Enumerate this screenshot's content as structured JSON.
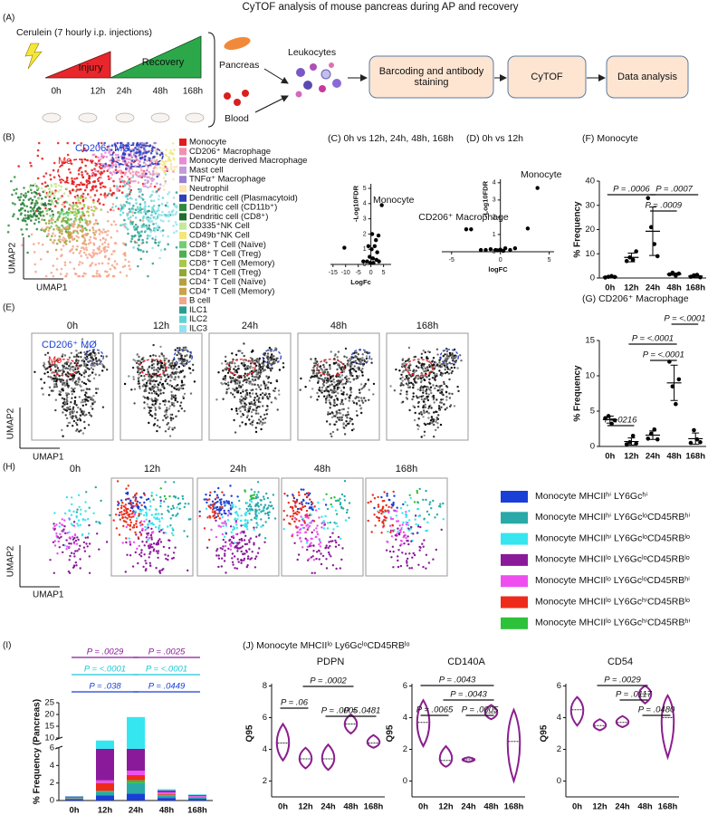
{
  "title": "CyTOF analysis of mouse pancreas during AP and recovery",
  "panel_a": {
    "label": "(A)",
    "treatment": "Cerulein (7 hourly i.p. injections)",
    "phases": [
      "Injury",
      "Recovery"
    ],
    "timepoints": [
      "0h",
      "12h",
      "24h",
      "48h",
      "168h"
    ],
    "tissues": [
      "Pancreas",
      "Blood"
    ],
    "cells": "Leukocytes",
    "steps": [
      "Barcoding and antibody staining",
      "CyTOF",
      "Data analysis"
    ]
  },
  "panel_b": {
    "label": "(B)",
    "gate_labels": [
      "CD206⁺ MØ",
      "Mo"
    ],
    "x_label": "UMAP1",
    "y_label": "UMAP2",
    "legend": [
      {
        "name": "Monocyte",
        "color": "#e41a1c"
      },
      {
        "name": "CD206⁺ Macrophage",
        "color": "#f48fb1"
      },
      {
        "name": "Monocyte derived Macrophage",
        "color": "#e98bd6"
      },
      {
        "name": "Mast cell",
        "color": "#c49bd8"
      },
      {
        "name": "TNFα⁺ Macrophage",
        "color": "#9b7fd0"
      },
      {
        "name": "Neutrophil",
        "color": "#fde4b0"
      },
      {
        "name": "Dendritic cell (Plasmacytoid)",
        "color": "#2b3fbf"
      },
      {
        "name": "Dendritic cell (CD11b⁺)",
        "color": "#2e8b3e"
      },
      {
        "name": "Dendritic cell (CD8⁺)",
        "color": "#1f6e2e"
      },
      {
        "name": "CD335⁺NK Cell",
        "color": "#c6e89a"
      },
      {
        "name": "CD49b⁺NK Cell",
        "color": "#f3e77a"
      },
      {
        "name": "CD8⁺ T Cell (Naïve)",
        "color": "#6fcf6f"
      },
      {
        "name": "CD8⁺ T Cell (Treg)",
        "color": "#4caf50"
      },
      {
        "name": "CD8⁺ T Cell (Memory)",
        "color": "#a8c84a"
      },
      {
        "name": "CD4⁺ T Cell (Treg)",
        "color": "#8fa832"
      },
      {
        "name": "CD4⁺ T Cell (Naïve)",
        "color": "#b5a040"
      },
      {
        "name": "CD4⁺ T Cell (Memory)",
        "color": "#c9a34a"
      },
      {
        "name": "B cell",
        "color": "#f4a58a"
      },
      {
        "name": "ILC1",
        "color": "#2a9d8f"
      },
      {
        "name": "ILC2",
        "color": "#5fd3d3"
      },
      {
        "name": "ILC3",
        "color": "#8fe3f0"
      }
    ]
  },
  "panel_e": {
    "label": "(E)",
    "timepoints": [
      "0h",
      "12h",
      "24h",
      "48h",
      "168h"
    ],
    "gate_labels": [
      "CD206⁺ MØ",
      "Mo"
    ],
    "x_label": "UMAP1",
    "y_label": "UMAP2"
  },
  "panel_h": {
    "label": "(H)",
    "timepoints": [
      "0h",
      "12h",
      "24h",
      "48h",
      "168h"
    ],
    "x_label": "UMAP1",
    "y_label": "UMAP2",
    "legend": [
      {
        "name": "Monocyte MHCIIʰⁱ LY6Gcʰⁱ",
        "color": "#1a3fd6"
      },
      {
        "name": "Monocyte MHCIIʰⁱ LY6GcˡᵒCD45RBʰⁱ",
        "color": "#2aa9a9"
      },
      {
        "name": "Monocyte MHCIIʰⁱ LY6GcˡᵒCD45RBˡᵒ",
        "color": "#35e6f0"
      },
      {
        "name": "Monocyte MHCIIˡᵒ LY6GcˡᵒCD45RBˡᵒ",
        "color": "#8a1a9a"
      },
      {
        "name": "Monocyte MHCIIˡᵒ LY6GcˡᵒCD45RBʰⁱ",
        "color": "#ee4ef0"
      },
      {
        "name": "Monocyte MHCIIˡᵒ LY6GcʰⁱCD45RBˡᵒ",
        "color": "#ee2b1b"
      },
      {
        "name": "Monocyte MHCIIˡᵒ LY6GcʰⁱCD45RBʰⁱ",
        "color": "#2ec13a"
      }
    ]
  },
  "panel_j": {
    "title": "(J) Monocyte MHCIIˡᵒ Ly6GcˡᵒCD45RBˡᵒ"
  },
  "chart_data": [
    {
      "type": "scatter",
      "title": "(C) 0h vs 12h, 24h, 48h, 168h",
      "x_label": "LogFc",
      "y_label": "-Log10FDR",
      "x": [
        4.3,
        -10.5,
        -3,
        -1,
        -0.5,
        0.3,
        0.8,
        1.5,
        2,
        2.5,
        3,
        -0.2,
        1,
        3.2,
        2.2,
        -1.5,
        0.5
      ],
      "values": [
        3.9,
        1.1,
        0.2,
        1.2,
        0.5,
        1.0,
        0.4,
        1.2,
        1.6,
        0.8,
        1.9,
        0.1,
        0.1,
        0.2,
        0.3,
        0.2,
        2.0
      ],
      "xlim": [
        -16,
        8
      ],
      "ylim": [
        0,
        5.3
      ],
      "xticks": [
        -15,
        -10,
        -5,
        0,
        5
      ],
      "yticks": [
        0,
        1,
        2,
        3,
        4,
        5
      ],
      "color": "#000000",
      "annotations": [
        "Monocyte"
      ]
    },
    {
      "type": "scatter",
      "title": "(D) 0h vs 12h",
      "x_label": "logFC",
      "y_label": "-Log10FDR",
      "x": [
        3.8,
        -3.5,
        -3.0,
        2.8,
        -1.5,
        -1,
        -0.5,
        0,
        0.5,
        1,
        -2,
        1.5,
        0.3,
        -0.3
      ],
      "values": [
        3.7,
        1.3,
        1.3,
        1.35,
        0.1,
        0.15,
        0.1,
        0.12,
        0.2,
        0.1,
        0.1,
        0.2,
        0.05,
        0.08
      ],
      "xlim": [
        -6,
        5.5
      ],
      "ylim": [
        0,
        4.2
      ],
      "xticks": [
        -5,
        0,
        5
      ],
      "yticks": [
        0,
        1,
        2,
        3,
        4
      ],
      "color": "#000000",
      "annotations": [
        "CD206⁺ Macrophage",
        "Monocyte"
      ]
    },
    {
      "type": "dot",
      "title": "(F) Monocyte",
      "y_label": "% Frequency",
      "categories": [
        "0h",
        "12h",
        "24h",
        "48h",
        "168h"
      ],
      "points": [
        [
          0.2,
          0.5,
          0.8,
          0.4
        ],
        [
          7,
          8.5,
          7.5,
          11
        ],
        [
          33,
          21,
          14,
          9
        ],
        [
          1.5,
          2.2,
          1,
          1.8
        ],
        [
          0.5,
          1.1,
          1.3,
          0.3
        ]
      ],
      "means": [
        0.5,
        8.5,
        19.3,
        1.6,
        0.8
      ],
      "sd": [
        0.3,
        1.8,
        10,
        0.5,
        0.5
      ],
      "ylim": [
        0,
        40
      ],
      "yticks": [
        0,
        10,
        20,
        30,
        40
      ],
      "color": "#000000",
      "comparisons": [
        {
          "label": "P = .0006",
          "from": "0h",
          "to": "24h"
        },
        {
          "label": "P = .0007",
          "from": "24h",
          "to": "168h"
        },
        {
          "label": "P = .0009",
          "from": "24h",
          "to": "48h"
        }
      ]
    },
    {
      "type": "dot",
      "title": "(G) CD206⁺ Macrophage",
      "y_label": "% Frequency",
      "categories": [
        "0h",
        "12h",
        "24h",
        "48h",
        "168h"
      ],
      "points": [
        [
          4,
          4.3,
          3.2,
          3.7
        ],
        [
          0.3,
          0.6,
          1.5,
          0.4
        ],
        [
          1.1,
          1.8,
          2.4,
          1.0
        ],
        [
          12,
          8.5,
          6,
          9.5
        ],
        [
          0.5,
          2.3,
          1,
          0.6
        ]
      ],
      "means": [
        3.8,
        0.7,
        1.6,
        9,
        1.1
      ],
      "sd": [
        0.5,
        0.5,
        0.6,
        2.5,
        0.8
      ],
      "ylim": [
        0,
        15
      ],
      "yticks": [
        0,
        5,
        10,
        15
      ],
      "color": "#000000",
      "comparisons": [
        {
          "label": "P = <.0001",
          "from": "48h",
          "to": "168h"
        },
        {
          "label": "P = <.0001",
          "from": "12h",
          "to": "48h"
        },
        {
          "label": "P = <.0001",
          "from": "24h",
          "to": "48h"
        },
        {
          "label": "P=.0216",
          "from": "0h",
          "to": "12h"
        }
      ]
    },
    {
      "type": "bar",
      "stacked": true,
      "label": "(I)",
      "y_label": "% Frequency (Pancreas)",
      "categories": [
        "0h",
        "12h",
        "24h",
        "48h",
        "168h"
      ],
      "series": [
        {
          "color": "#1a3fd6",
          "values": [
            0.15,
            0.6,
            0.8,
            0.3,
            0.2
          ]
        },
        {
          "color": "#2aa9a9",
          "values": [
            0.1,
            0.4,
            1.2,
            0.3,
            0.15
          ]
        },
        {
          "color": "#2ec13a",
          "values": [
            0.02,
            0.1,
            0.3,
            0.05,
            0.03
          ]
        },
        {
          "color": "#ee2b1b",
          "values": [
            0.03,
            0.9,
            0.6,
            0.1,
            0.05
          ]
        },
        {
          "color": "#ee4ef0",
          "values": [
            0.05,
            0.3,
            0.5,
            0.2,
            0.1
          ]
        },
        {
          "color": "#8a1a9a",
          "values": [
            0.1,
            3.6,
            2.5,
            0.2,
            0.1
          ]
        },
        {
          "color": "#35e6f0",
          "values": [
            0.05,
            3.1,
            13,
            0.15,
            0.07
          ]
        }
      ],
      "ylim": [
        0,
        25
      ],
      "ybreak": [
        6,
        10
      ],
      "yticks": [
        0,
        2,
        4,
        6,
        10,
        15,
        20,
        25
      ],
      "comparisons": [
        {
          "label": "P = .0029",
          "from": "0h",
          "to": "24h",
          "color": "#8a1a9a"
        },
        {
          "label": "P = <.0001",
          "from": "0h",
          "to": "24h",
          "color": "#1fc8d8"
        },
        {
          "label": "P = .038",
          "from": "0h",
          "to": "24h",
          "color": "#1a3fd6"
        },
        {
          "label": "P = .0025",
          "from": "24h",
          "to": "168h",
          "color": "#8a1a9a"
        },
        {
          "label": "P = <.0001",
          "from": "24h",
          "to": "168h",
          "color": "#1fc8d8"
        },
        {
          "label": "P = .0449",
          "from": "24h",
          "to": "168h",
          "color": "#1a3fd6"
        }
      ]
    },
    {
      "type": "violin",
      "title": "PDPN",
      "y_label": "Q95",
      "categories": [
        "0h",
        "12h",
        "24h",
        "48h",
        "168h"
      ],
      "min": [
        3.3,
        2.8,
        2.7,
        5.0,
        4.1
      ],
      "median": [
        4.4,
        3.4,
        3.4,
        5.6,
        4.4
      ],
      "max": [
        5.6,
        4.1,
        4.3,
        6.2,
        4.9
      ],
      "ylim": [
        1,
        9
      ],
      "yticks": [
        2,
        4,
        6,
        8
      ],
      "color": "#8b1f8f",
      "comparisons": [
        {
          "label": "P = .0002",
          "from": "12h",
          "to": "48h"
        },
        {
          "label": "P = .06",
          "from": "0h",
          "to": "12h"
        },
        {
          "label": "P = .0005",
          "from": "24h",
          "to": "48h"
        },
        {
          "label": "P = .0481",
          "from": "48h",
          "to": "168h"
        }
      ]
    },
    {
      "type": "violin",
      "title": "CD140A",
      "y_label": "Q95",
      "categories": [
        "0h",
        "12h",
        "24h",
        "48h",
        "168h"
      ],
      "min": [
        2.2,
        0.9,
        1.2,
        3.9,
        0
      ],
      "median": [
        3.7,
        1.3,
        1.35,
        4.3,
        2.5
      ],
      "max": [
        5.1,
        2.2,
        1.5,
        4.8,
        4.5
      ],
      "ylim": [
        -1,
        7
      ],
      "yticks": [
        0,
        2,
        4,
        6
      ],
      "color": "#8b1f8f",
      "comparisons": [
        {
          "label": "P = .0043",
          "from": "0h",
          "to": "48h"
        },
        {
          "label": "P = .0043",
          "from": "12h",
          "to": "48h"
        },
        {
          "label": "P = .0065",
          "from": "0h",
          "to": "12h"
        },
        {
          "label": "P = .0005",
          "from": "24h",
          "to": "48h"
        }
      ]
    },
    {
      "type": "violin",
      "title": "CD54",
      "y_label": "Q95",
      "categories": [
        "0h",
        "12h",
        "24h",
        "48h",
        "168h"
      ],
      "min": [
        3.5,
        3.2,
        3.4,
        4.9,
        1.5
      ],
      "median": [
        4.5,
        3.5,
        3.7,
        5.5,
        4.0
      ],
      "max": [
        5.3,
        3.9,
        4.1,
        6.0,
        5.4
      ],
      "ylim": [
        -1,
        7
      ],
      "yticks": [
        0,
        2,
        4,
        6
      ],
      "color": "#8b1f8f",
      "comparisons": [
        {
          "label": "P = .0029",
          "from": "12h",
          "to": "48h"
        },
        {
          "label": "P = .0117",
          "from": "24h",
          "to": "48h"
        },
        {
          "label": "P = .0480",
          "from": "48h",
          "to": "168h"
        }
      ]
    }
  ]
}
